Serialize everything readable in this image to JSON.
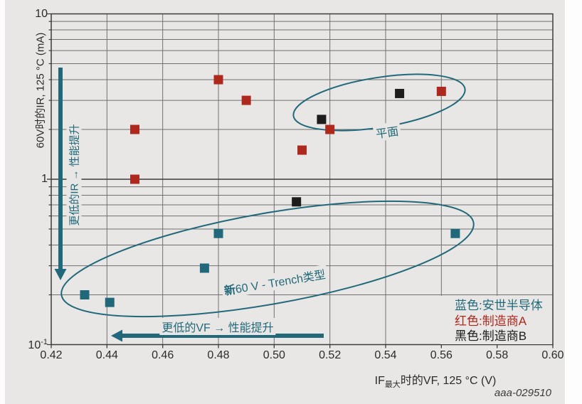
{
  "figure": {
    "watermark": "aaa-029510",
    "colors": {
      "background": "#e8e7e5",
      "teal": "#21697a",
      "red": "#ae281e",
      "black": "#1d1d1d",
      "grid_minor": "#707070",
      "grid_major": "#3c3c3c",
      "text": "#2b2b2b"
    },
    "legend": {
      "items": [
        {
          "label": "蓝色:安世半导体",
          "color": "#21697a"
        },
        {
          "label": "红色:制造商A",
          "color": "#ae281e"
        },
        {
          "label": "黑色:制造商B",
          "color": "#1d1d1d"
        }
      ]
    },
    "annotations": {
      "planar_label": "平面",
      "trench_label_bold": "新",
      "trench_label_rest": "60 V - Trench类型",
      "arrow_ir_label": "更低的IR → 性能提升",
      "arrow_vf_label": "更低的VF → 性能提升"
    },
    "x_axis_title": {
      "pre": "IF",
      "sub": "最大",
      "post": "时的VF, 125 °C (V)"
    },
    "y_axis_title": "60V时的IR, 125 °C (mA)"
  },
  "chart_data": {
    "type": "scatter",
    "title": "",
    "xlabel": "IF最大时的VF, 125 °C (V)",
    "ylabel": "60V时的IR, 125 °C (mA)",
    "xlim": [
      0.42,
      0.6
    ],
    "ylim": [
      0.1,
      10
    ],
    "y_scale": "log",
    "grid": "on",
    "legend_position": "bottom-right",
    "x_tick_labels": [
      "0.42",
      "0.44",
      "0.46",
      "0.48",
      "0.50",
      "0.52",
      "0.54",
      "0.56",
      "0.58",
      "0.60"
    ],
    "x_tick_values": [
      0.42,
      0.44,
      0.46,
      0.48,
      0.5,
      0.52,
      0.54,
      0.56,
      0.58,
      0.6
    ],
    "y_ticks": [
      {
        "base": "10",
        "exp": "",
        "value": 10
      },
      {
        "base": "1",
        "exp": "",
        "value": 1
      },
      {
        "base": "10",
        "exp": "-1",
        "value": 0.1
      }
    ],
    "series": [
      {
        "name": "安世半导体",
        "color": "#21697a",
        "points": [
          [
            0.432,
            0.2
          ],
          [
            0.441,
            0.18
          ],
          [
            0.475,
            0.29
          ],
          [
            0.48,
            0.47
          ],
          [
            0.565,
            0.47
          ]
        ]
      },
      {
        "name": "制造商A",
        "color": "#ae281e",
        "points": [
          [
            0.45,
            1.0
          ],
          [
            0.45,
            2.0
          ],
          [
            0.48,
            4.0
          ],
          [
            0.49,
            3.0
          ],
          [
            0.51,
            1.5
          ],
          [
            0.52,
            2.0
          ],
          [
            0.56,
            3.4
          ]
        ]
      },
      {
        "name": "制造商B",
        "color": "#1d1d1d",
        "points": [
          [
            0.508,
            0.73
          ],
          [
            0.517,
            2.3
          ],
          [
            0.545,
            3.3
          ]
        ]
      }
    ],
    "group_annotations": [
      {
        "type": "ellipse",
        "label": "平面",
        "series_group": "planar"
      },
      {
        "type": "ellipse",
        "label": "新60 V - Trench类型",
        "series_group": "trench"
      }
    ]
  }
}
